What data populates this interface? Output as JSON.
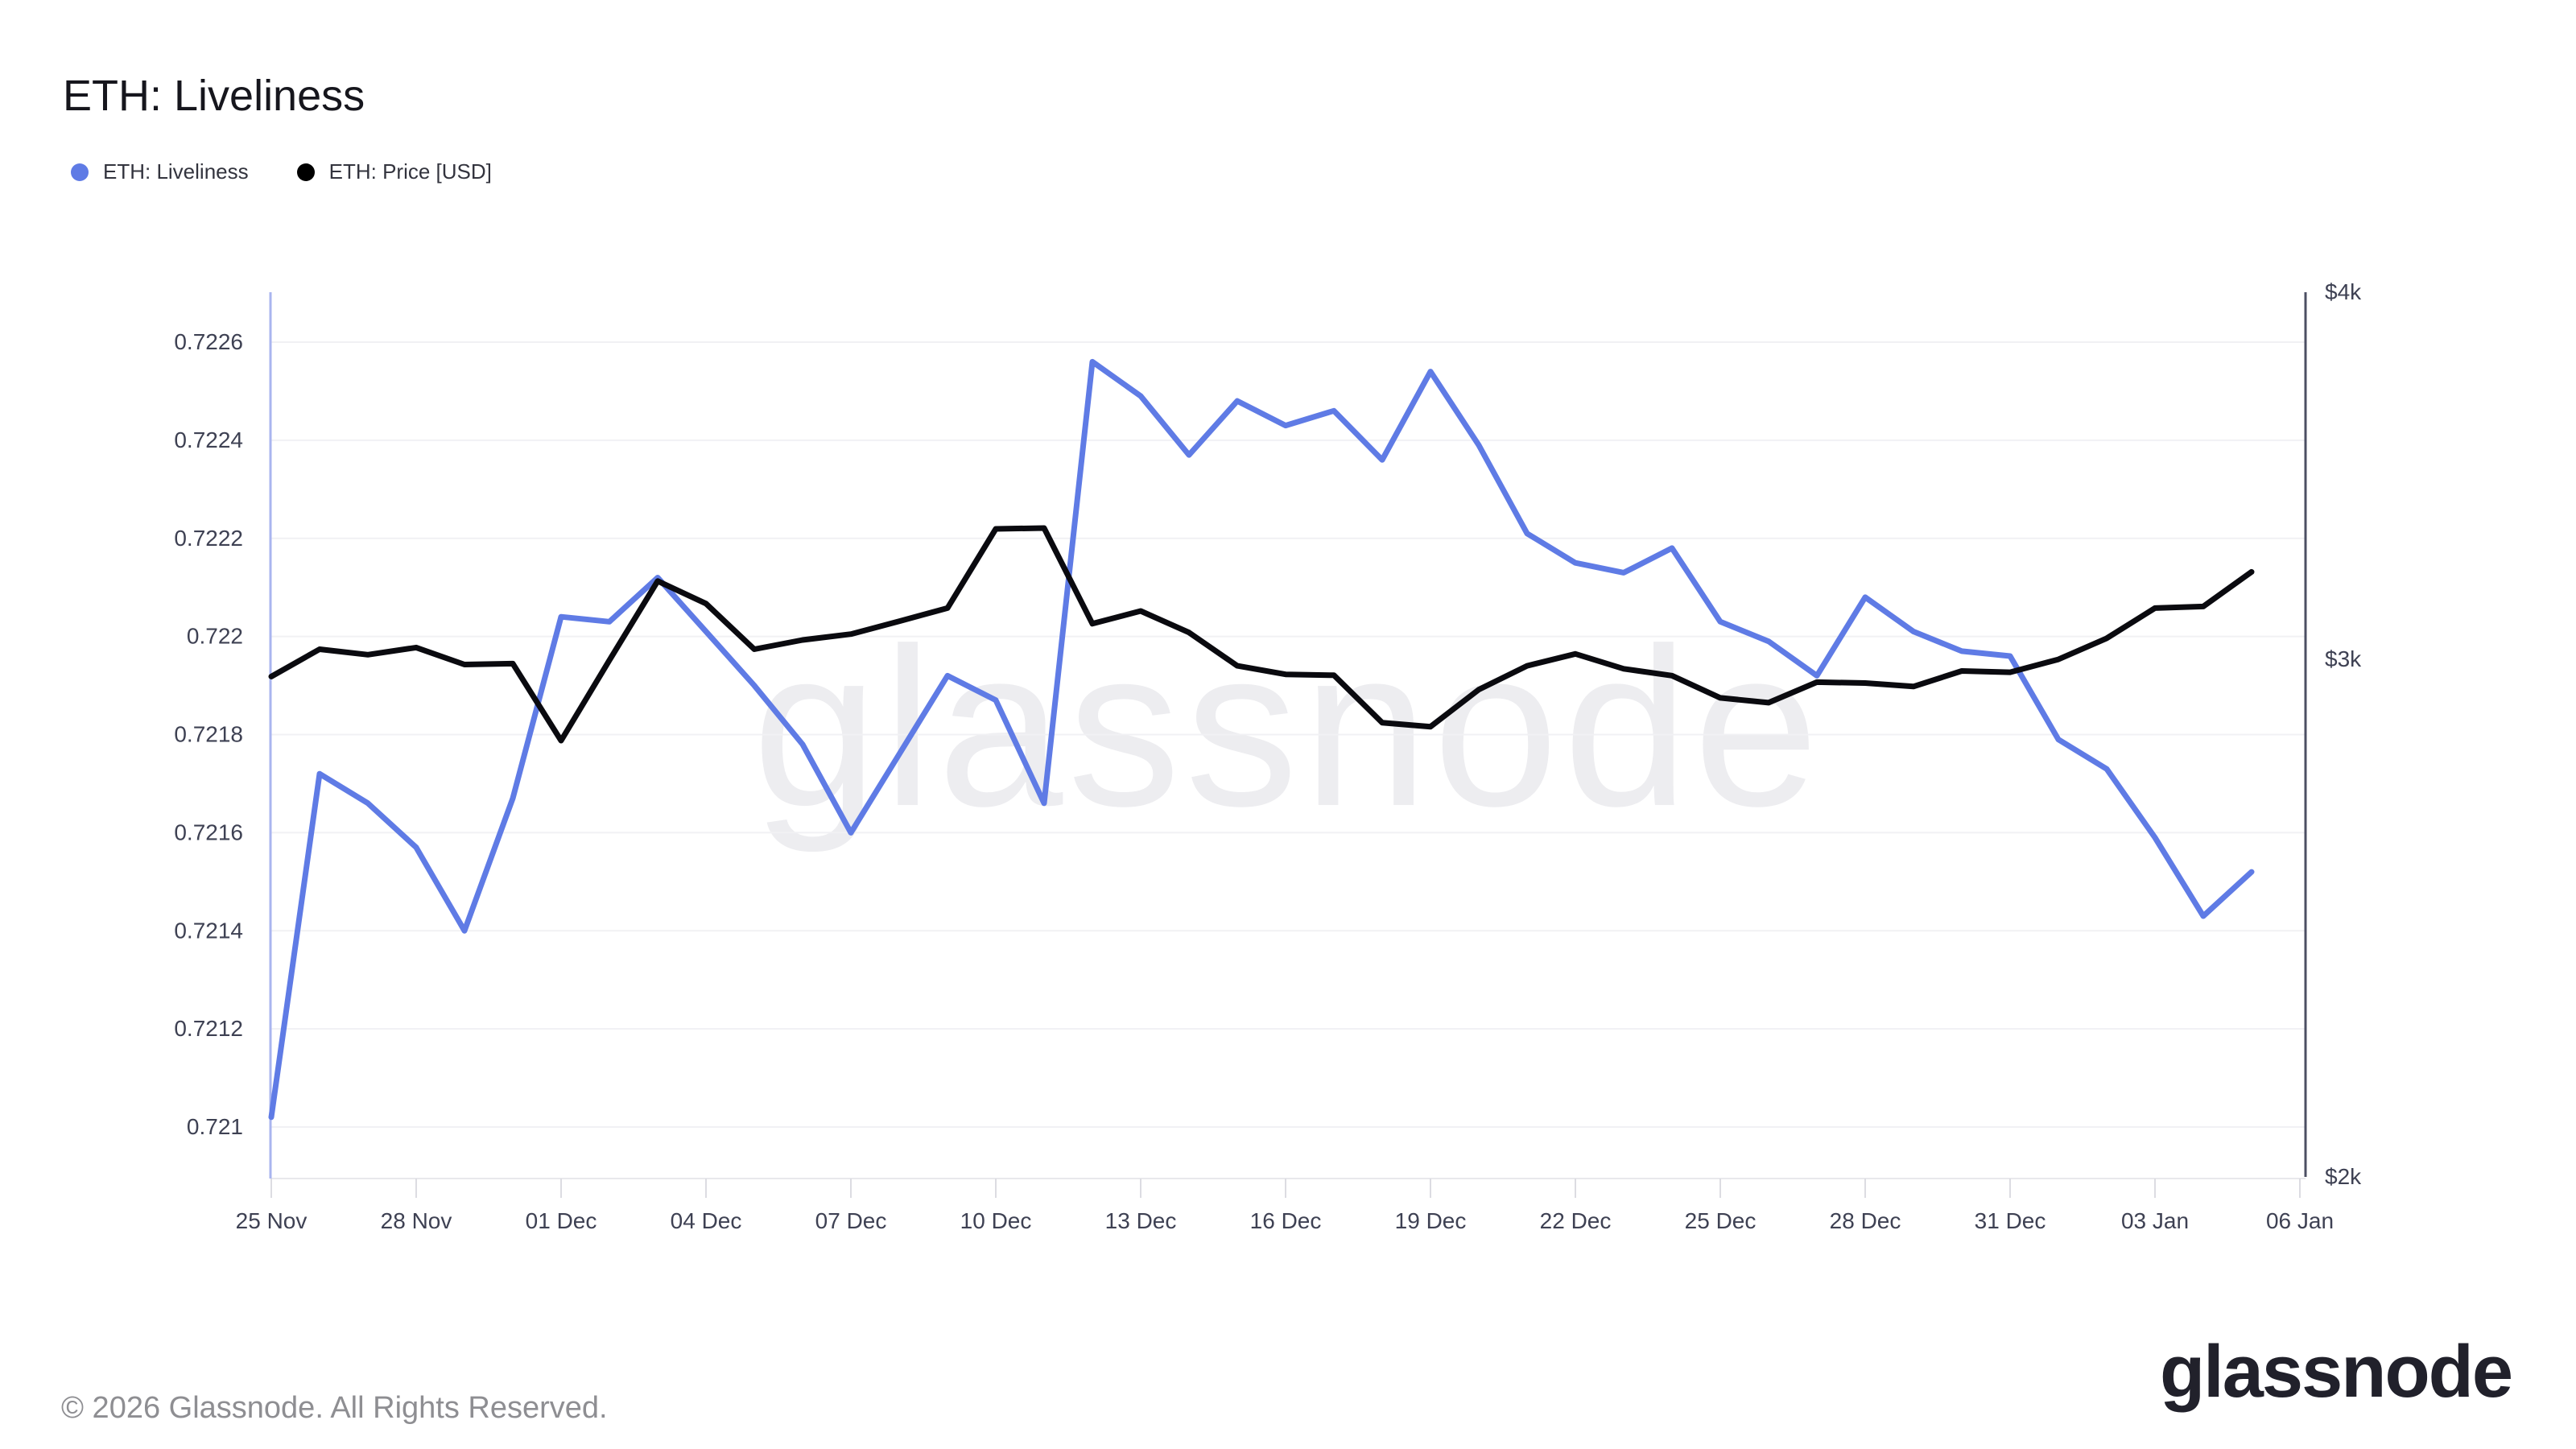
{
  "title": "ETH: Liveliness",
  "legend": [
    {
      "label": "ETH: Liveliness",
      "color": "#5F7BE5"
    },
    {
      "label": "ETH: Price [USD]",
      "color": "#000000"
    }
  ],
  "watermark": "glassnode",
  "footer": {
    "copyright": "© 2026 Glassnode. All Rights Reserved.",
    "brand": "glassnode"
  },
  "chart_data": {
    "type": "line",
    "title": "ETH: Liveliness",
    "x": [
      "25 Nov",
      "26 Nov",
      "27 Nov",
      "28 Nov",
      "29 Nov",
      "30 Nov",
      "01 Dec",
      "02 Dec",
      "03 Dec",
      "04 Dec",
      "05 Dec",
      "06 Dec",
      "07 Dec",
      "08 Dec",
      "09 Dec",
      "10 Dec",
      "11 Dec",
      "12 Dec",
      "13 Dec",
      "14 Dec",
      "15 Dec",
      "16 Dec",
      "17 Dec",
      "18 Dec",
      "19 Dec",
      "20 Dec",
      "21 Dec",
      "22 Dec",
      "23 Dec",
      "24 Dec",
      "25 Dec",
      "26 Dec",
      "27 Dec",
      "28 Dec",
      "29 Dec",
      "30 Dec",
      "31 Dec",
      "01 Jan",
      "02 Jan",
      "03 Jan",
      "04 Jan",
      "05 Jan"
    ],
    "x_tick_labels": [
      "25 Nov",
      "28 Nov",
      "01 Dec",
      "04 Dec",
      "07 Dec",
      "10 Dec",
      "13 Dec",
      "16 Dec",
      "19 Dec",
      "22 Dec",
      "25 Dec",
      "28 Dec",
      "31 Dec",
      "03 Jan",
      "06 Jan"
    ],
    "series": [
      {
        "name": "ETH: Liveliness",
        "axis": "left",
        "color": "#5F7BE5",
        "values": [
          0.72102,
          0.72172,
          0.72166,
          0.72157,
          0.7214,
          0.72167,
          0.72204,
          0.72203,
          0.72212,
          0.72201,
          0.7219,
          0.72178,
          0.7216,
          0.72176,
          0.72192,
          0.72187,
          0.72166,
          0.72256,
          0.72249,
          0.72237,
          0.72248,
          0.72243,
          0.72246,
          0.72236,
          0.72254,
          0.72239,
          0.72221,
          0.72215,
          0.72213,
          0.72218,
          0.72203,
          0.72199,
          0.72192,
          0.72208,
          0.72201,
          0.72197,
          0.72196,
          0.72179,
          0.72173,
          0.72159,
          0.72143,
          0.72152
        ]
      },
      {
        "name": "ETH: Price [USD]",
        "axis": "right",
        "color": "#0a0a0f",
        "values": [
          2960,
          3024,
          3011,
          3028,
          2988,
          2990,
          2815,
          2998,
          3190,
          3134,
          3024,
          3046,
          3060,
          3091,
          3123,
          3323,
          3325,
          3085,
          3116,
          3064,
          2985,
          2965,
          2963,
          2855,
          2846,
          2930,
          2985,
          3013,
          2978,
          2962,
          2911,
          2900,
          2947,
          2945,
          2937,
          2973,
          2970,
          3000,
          3050,
          3123,
          3127,
          3213
        ]
      }
    ],
    "left_axis": {
      "ticks": [
        "0.721",
        "0.7212",
        "0.7214",
        "0.7216",
        "0.7218",
        "0.722",
        "0.7222",
        "0.7224",
        "0.7226"
      ],
      "tick_values": [
        0.721,
        0.7212,
        0.7214,
        0.7216,
        0.7218,
        0.722,
        0.7222,
        0.7224,
        0.7226
      ],
      "range_labeled": [
        0.721,
        0.7226
      ],
      "scale": "linear",
      "axis_color": "#A9B5EF",
      "label_color": "#3e4153"
    },
    "right_axis": {
      "ticks": [
        {
          "label": "$2k",
          "value": 2000
        },
        {
          "label": "$3k",
          "value": 3000
        },
        {
          "label": "$4k",
          "value": 4000
        }
      ],
      "scale": "log",
      "axis_color": "#4c4f63",
      "label_color": "#3e4153"
    },
    "grid": true,
    "grid_color": "#f1f1f4",
    "legend_position": "top-left"
  }
}
